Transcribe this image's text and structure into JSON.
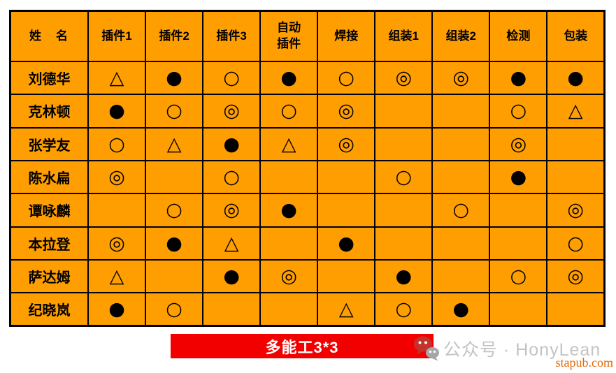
{
  "colors": {
    "cell_orange": "#FF9E00",
    "grid_black": "#000000",
    "banner_red": "#F20000",
    "banner_text_white": "#FFFFFF",
    "watermark_gray": "#C4C4C4",
    "site_text_orange": "#E0690B",
    "wechat_bubble_red": "#C5322B",
    "wechat_bubble_gray": "#A6A6A6"
  },
  "table": {
    "columns": [
      {
        "label": "姓　名"
      },
      {
        "label": "插件1"
      },
      {
        "label": "插件2"
      },
      {
        "label": "插件3"
      },
      {
        "label": "自动\n插件"
      },
      {
        "label": "焊接"
      },
      {
        "label": "组装1"
      },
      {
        "label": "组装2"
      },
      {
        "label": "检测"
      },
      {
        "label": "包装"
      }
    ],
    "symbols": {
      "triangle": "△",
      "filled_circle": "●",
      "open_circle": "○",
      "double_circle": "◎",
      "empty": ""
    },
    "rows": [
      {
        "name": "刘德华",
        "skills": [
          "triangle",
          "filled_circle",
          "open_circle",
          "filled_circle",
          "open_circle",
          "double_circle",
          "double_circle",
          "filled_circle",
          "filled_circle"
        ]
      },
      {
        "name": "克林顿",
        "skills": [
          "filled_circle",
          "open_circle",
          "double_circle",
          "open_circle",
          "double_circle",
          "empty",
          "empty",
          "open_circle",
          "triangle"
        ]
      },
      {
        "name": "张学友",
        "skills": [
          "open_circle",
          "triangle",
          "filled_circle",
          "triangle",
          "double_circle",
          "empty",
          "empty",
          "double_circle",
          "empty"
        ]
      },
      {
        "name": "陈水扁",
        "skills": [
          "double_circle",
          "empty",
          "open_circle",
          "empty",
          "empty",
          "open_circle",
          "empty",
          "filled_circle",
          "empty"
        ]
      },
      {
        "name": "谭咏麟",
        "skills": [
          "empty",
          "open_circle",
          "double_circle",
          "filled_circle",
          "empty",
          "empty",
          "open_circle",
          "empty",
          "double_circle"
        ]
      },
      {
        "name": "本拉登",
        "skills": [
          "double_circle",
          "filled_circle",
          "triangle",
          "empty",
          "filled_circle",
          "empty",
          "empty",
          "empty",
          "open_circle"
        ]
      },
      {
        "name": "萨达姆",
        "skills": [
          "triangle",
          "empty",
          "filled_circle",
          "double_circle",
          "empty",
          "filled_circle",
          "empty",
          "open_circle",
          "double_circle"
        ]
      },
      {
        "name": "纪晓岚",
        "skills": [
          "filled_circle",
          "open_circle",
          "empty",
          "empty",
          "triangle",
          "open_circle",
          "filled_circle",
          "empty",
          "empty"
        ]
      }
    ]
  },
  "banner": {
    "label": "多能工3*3"
  },
  "watermark": {
    "account_text": "公众号 · HonyLean",
    "site_text": "stapub.com"
  }
}
